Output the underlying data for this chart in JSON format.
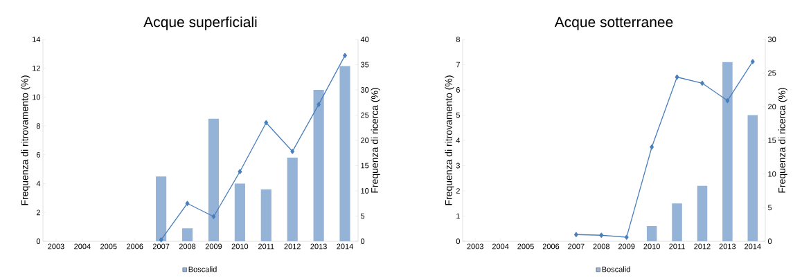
{
  "chart_data": [
    {
      "type": "bar",
      "title": "Acque superficiali",
      "ylabel": "Frequenza di ritrovamento (%)",
      "y2label": "Frequenza di ricerca (%)",
      "categories": [
        "2003",
        "2004",
        "2005",
        "2006",
        "2007",
        "2008",
        "2009",
        "2010",
        "2011",
        "2012",
        "2013",
        "2014"
      ],
      "series": [
        {
          "name": "Boscalid",
          "color": "#95b3d7",
          "values": [
            null,
            null,
            null,
            null,
            4.5,
            0.9,
            8.5,
            4.0,
            3.6,
            5.8,
            10.5,
            12.15
          ]
        },
        {
          "type": "line",
          "axis": "y2",
          "color": "#4a7ebb",
          "marker": "diamond",
          "values": [
            null,
            null,
            null,
            null,
            0.3,
            7.5,
            4.9,
            13.8,
            23.5,
            17.8,
            27.1,
            36.8
          ]
        }
      ],
      "ylim": [
        0,
        14
      ],
      "yticks": [
        0,
        2,
        4,
        6,
        8,
        10,
        12,
        14
      ],
      "y2lim": [
        0,
        40
      ],
      "y2ticks": [
        0,
        5,
        10,
        15,
        20,
        25,
        30,
        35,
        40
      ],
      "legend": "bottom",
      "grid": false
    },
    {
      "type": "bar",
      "title": "Acque sotterranee",
      "ylabel": "Frequenza di ritrovamento (%)",
      "y2label": "Frequenza di ricerca (%)",
      "categories": [
        "2003",
        "2004",
        "2005",
        "2006",
        "2007",
        "2008",
        "2009",
        "2010",
        "2011",
        "2012",
        "2013",
        "2014"
      ],
      "series": [
        {
          "name": "Boscalid",
          "color": "#95b3d7",
          "values": [
            null,
            null,
            null,
            null,
            null,
            null,
            null,
            0.6,
            1.5,
            2.2,
            7.1,
            5.0
          ]
        },
        {
          "type": "line",
          "axis": "y2",
          "color": "#4a7ebb",
          "marker": "diamond",
          "values": [
            null,
            null,
            null,
            null,
            1.0,
            0.9,
            0.6,
            14.0,
            24.4,
            23.5,
            20.9,
            26.7
          ]
        }
      ],
      "ylim": [
        0,
        8
      ],
      "yticks": [
        0,
        1,
        2,
        3,
        4,
        5,
        6,
        7,
        8
      ],
      "y2lim": [
        0,
        30
      ],
      "y2ticks": [
        0,
        5,
        10,
        15,
        20,
        25,
        30
      ],
      "legend": "bottom",
      "grid": false
    }
  ]
}
